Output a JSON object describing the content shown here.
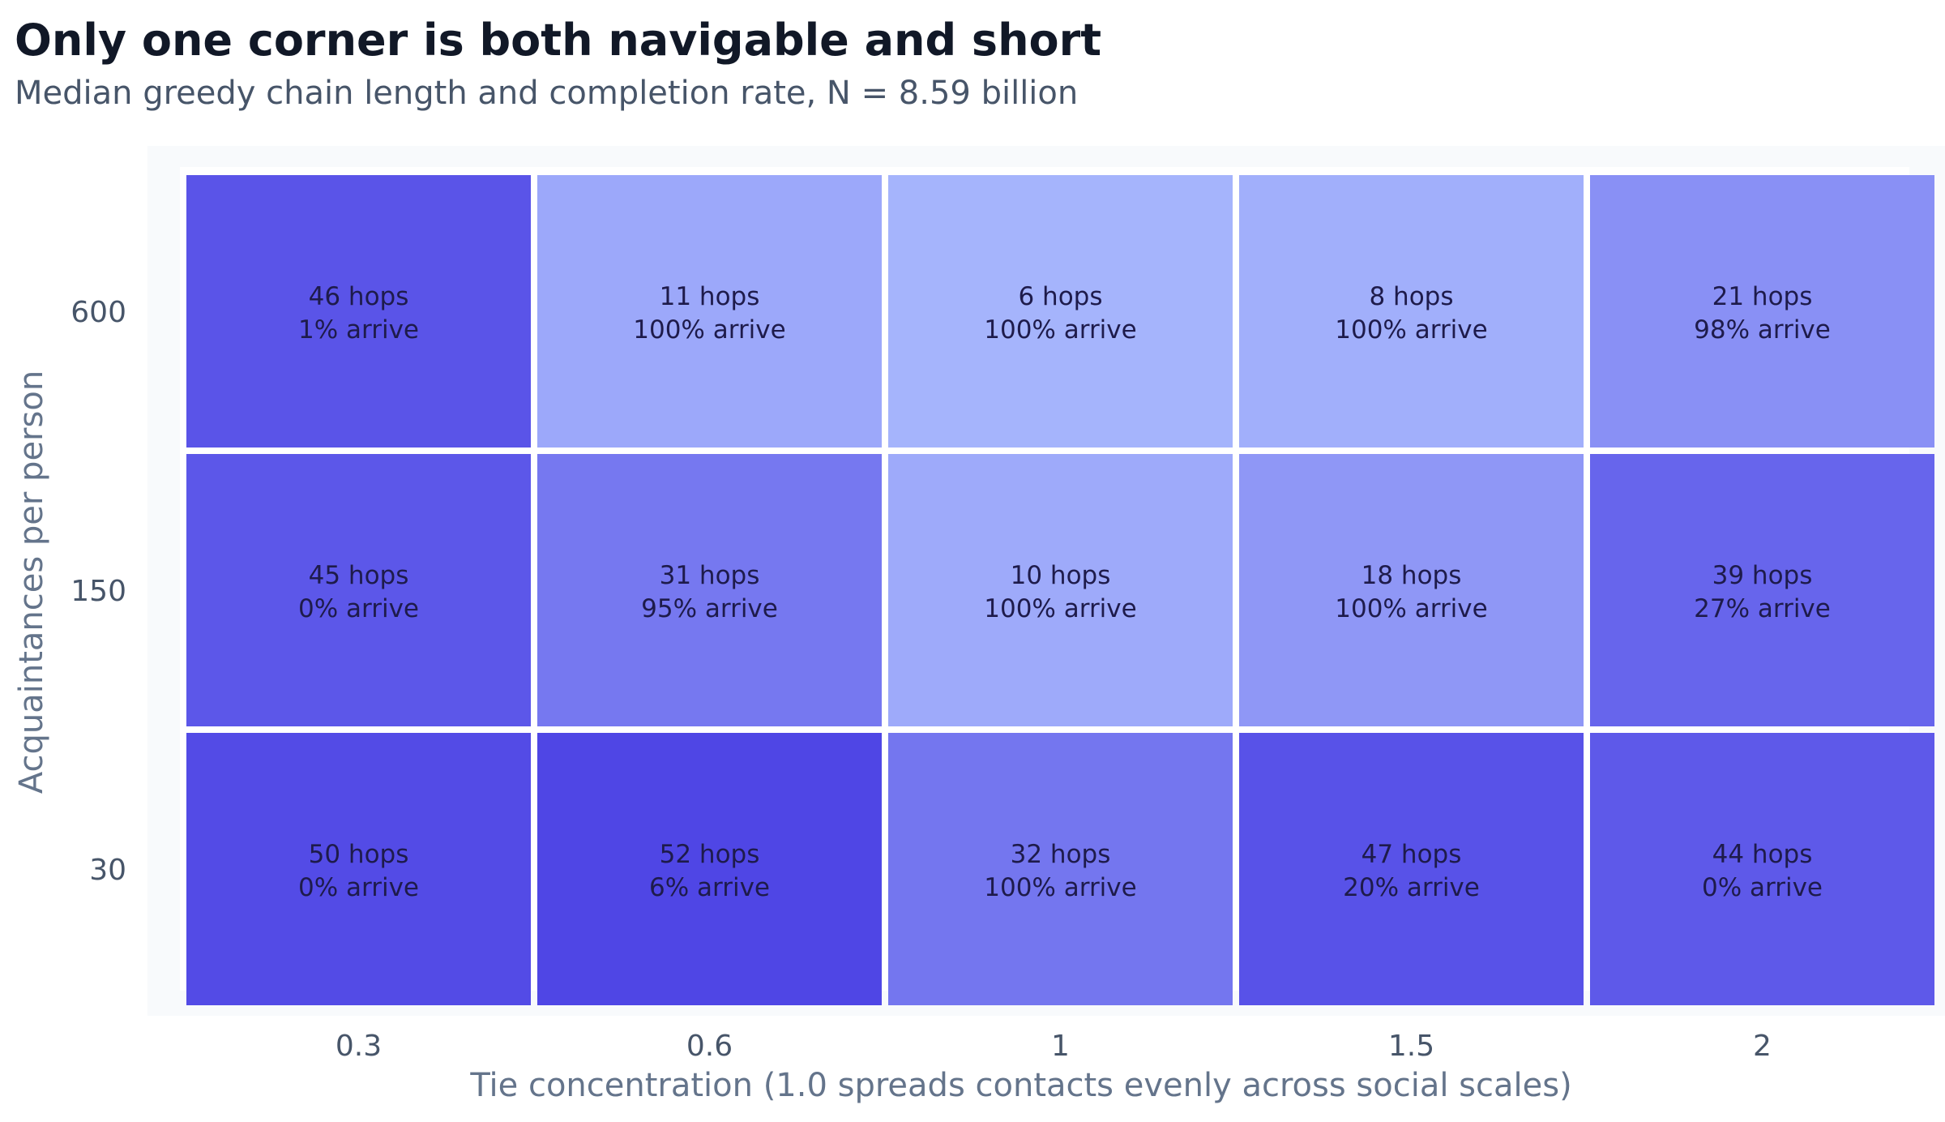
{
  "chart_data": {
    "type": "heatmap",
    "title": "Only one corner is both navigable and short",
    "subtitle": "Median greedy chain length and completion rate, N = 8.59 billion",
    "xlabel": "Tie concentration (1.0 spreads contacts evenly across social scales)",
    "ylabel": "Acquaintances per person",
    "x_categories": [
      "0.3",
      "0.6",
      "1",
      "1.5",
      "2"
    ],
    "y_categories": [
      "600",
      "150",
      "30"
    ],
    "hops": [
      [
        46,
        11,
        6,
        8,
        21
      ],
      [
        45,
        31,
        10,
        18,
        39
      ],
      [
        50,
        52,
        32,
        47,
        44
      ]
    ],
    "arrive_pct": [
      [
        1,
        100,
        100,
        100,
        98
      ],
      [
        0,
        95,
        100,
        100,
        27
      ],
      [
        0,
        6,
        100,
        20,
        0
      ]
    ],
    "hops_unit": "hops",
    "arrive_unit": "% arrive",
    "color_scale": {
      "low": "#a5b4fc",
      "high": "#4f46e5",
      "panel_bg": "#f8fafc"
    }
  }
}
